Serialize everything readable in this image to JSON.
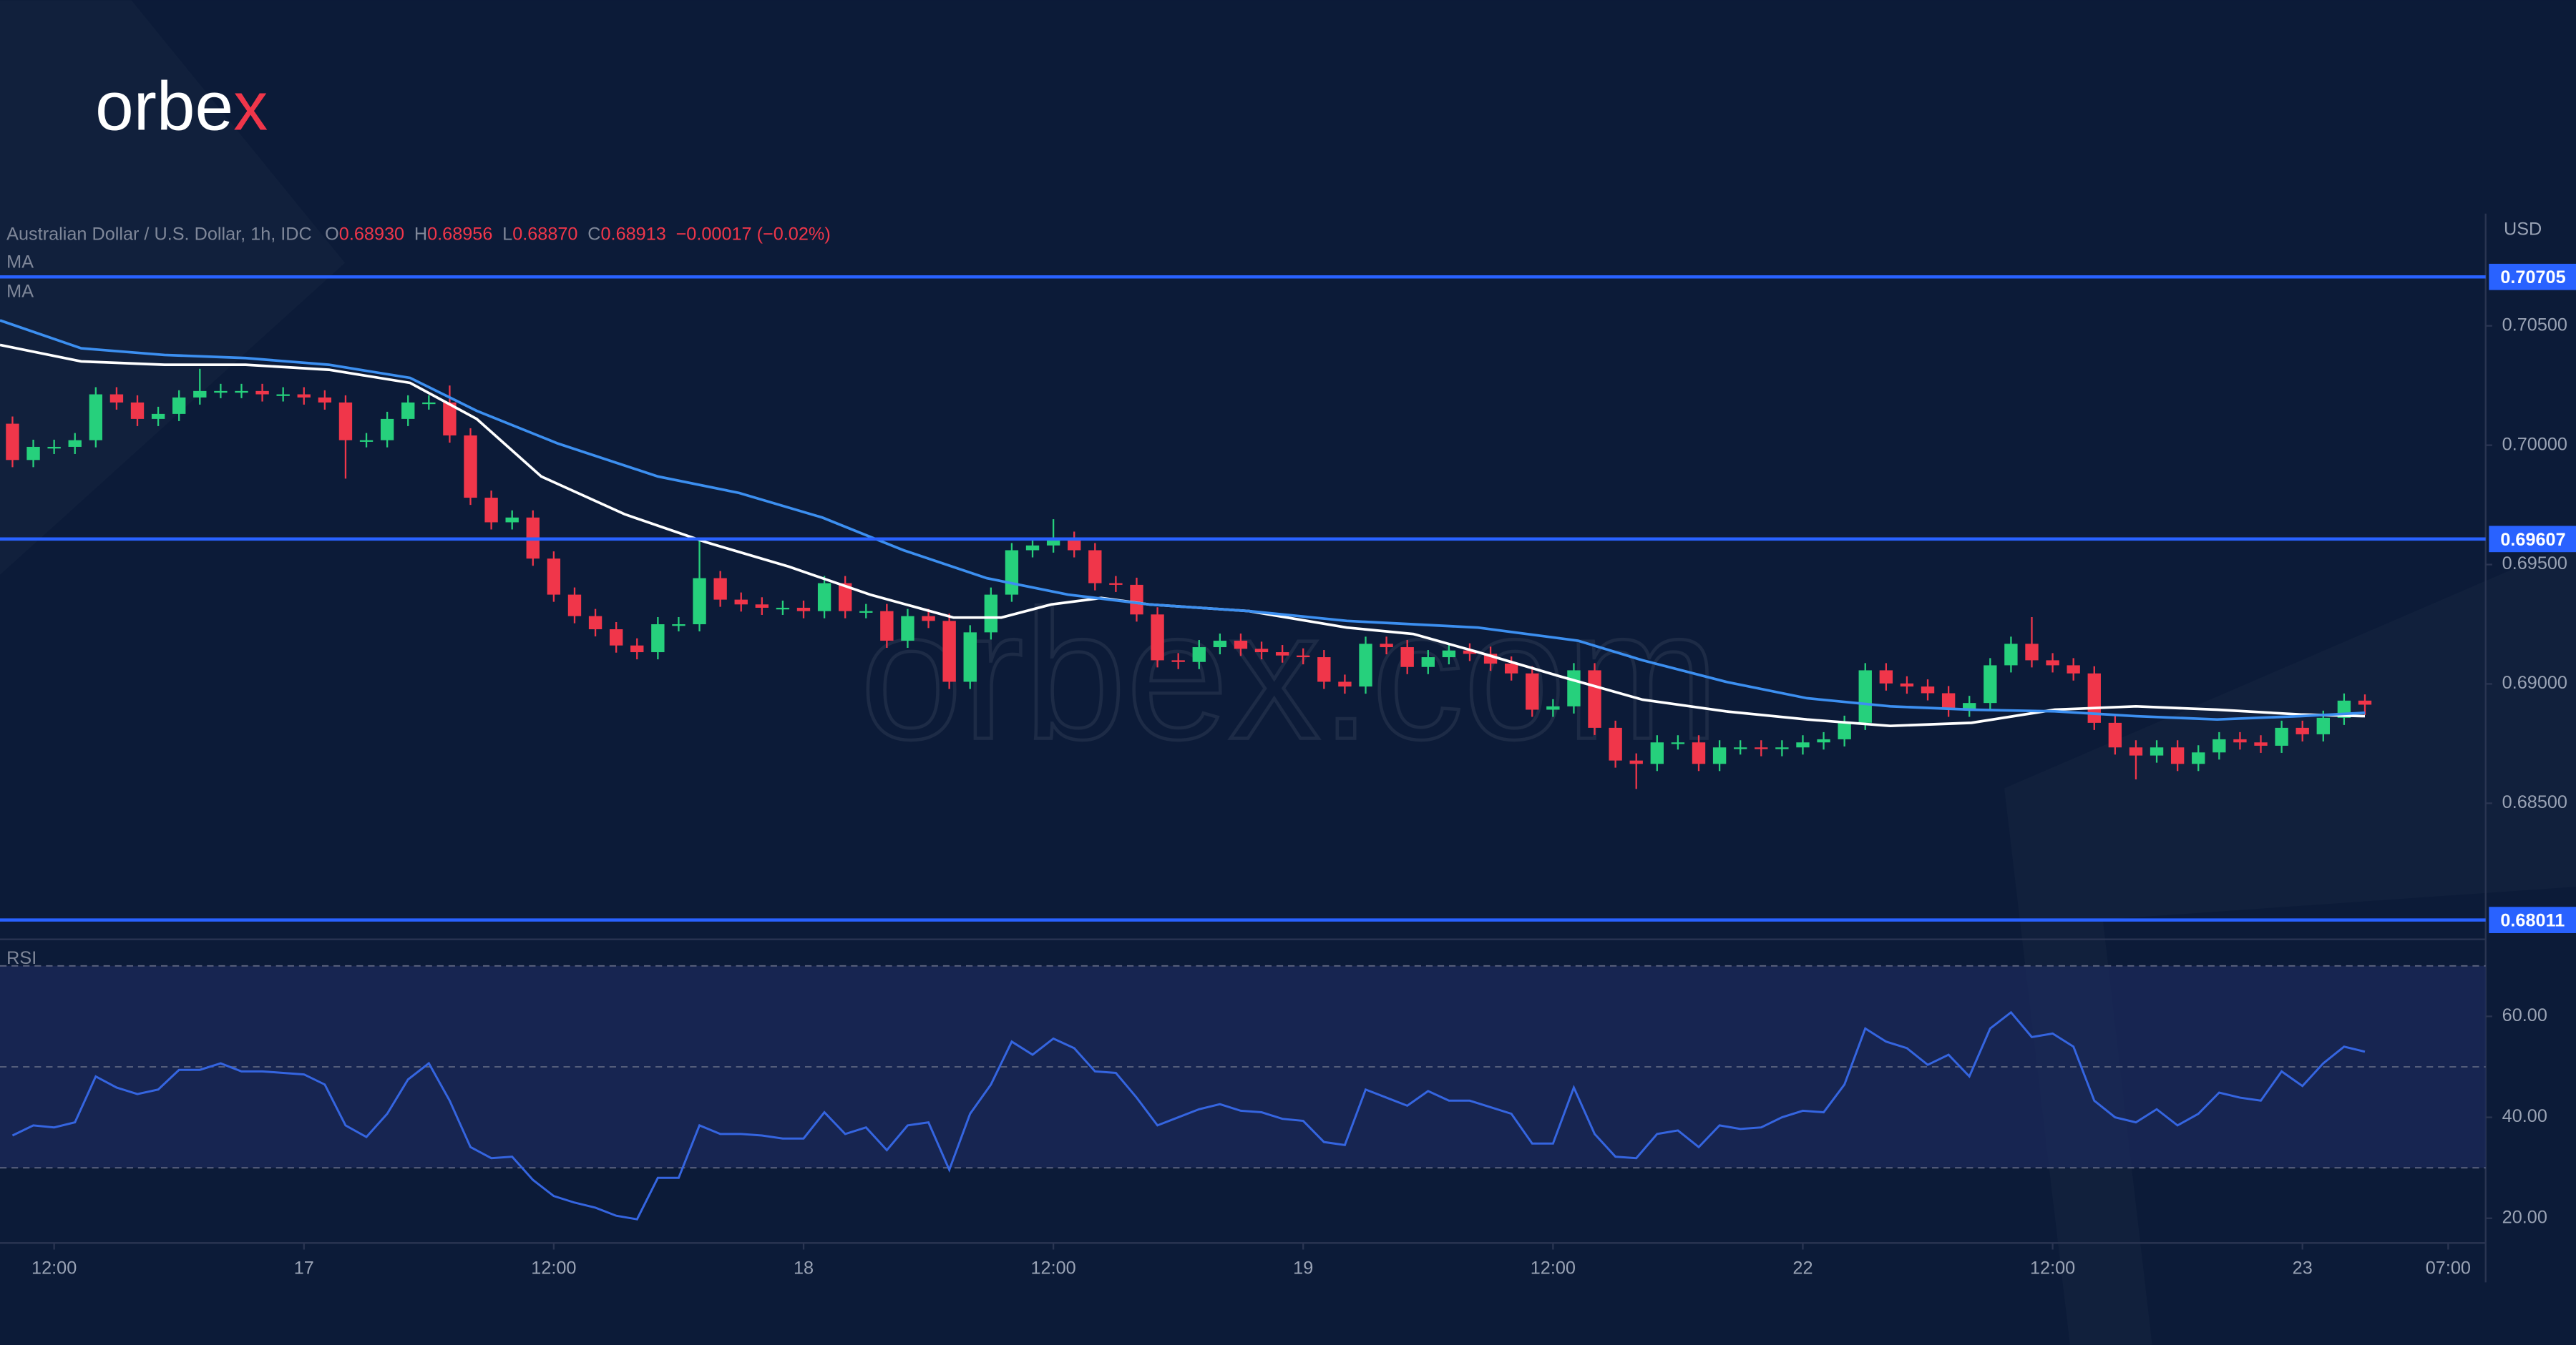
{
  "logo": {
    "text": "orbe",
    "accent": "x"
  },
  "watermark": "orbex.com",
  "chart_data": [
    {
      "type": "candlestick",
      "title": "Australian Dollar / U.S. Dollar, 1h, IDC",
      "ohlc": [
        {
          "label": "O",
          "value": "0.68930"
        },
        {
          "label": "H",
          "value": "0.68956"
        },
        {
          "label": "L",
          "value": "0.68870"
        },
        {
          "label": "C",
          "value": "0.68913"
        }
      ],
      "change": "−0.00017 (−0.02%)",
      "currency": "USD",
      "up_color": "#26d07c",
      "down_color": "#f0364a",
      "ylim": [
        0.67944,
        0.7097
      ],
      "yticks": [
        {
          "value": 0.705,
          "label": "0.70500"
        },
        {
          "value": 0.7,
          "label": "0.70000"
        },
        {
          "value": 0.695,
          "label": "0.69500"
        },
        {
          "value": 0.69,
          "label": "0.69000"
        },
        {
          "value": 0.685,
          "label": "0.68500"
        }
      ],
      "levels": [
        0.70705,
        0.69607,
        0.68011
      ],
      "level_color": "#2962ff",
      "x": [
        -2,
        -1,
        0,
        1,
        2,
        3,
        4,
        5,
        6,
        7,
        8,
        9,
        10,
        11,
        12,
        13,
        14,
        15,
        16,
        17,
        18,
        19,
        20,
        21,
        22,
        23,
        24,
        25,
        26,
        27,
        28,
        29,
        30,
        31,
        32,
        33,
        34,
        35,
        36,
        37,
        38,
        39,
        40,
        41,
        42,
        43,
        44,
        45,
        46,
        47,
        48,
        49,
        50,
        51,
        52,
        53,
        54,
        55,
        56,
        57,
        58,
        59,
        60,
        61,
        62,
        63,
        64,
        65,
        66,
        67,
        68,
        69,
        70,
        71,
        72,
        73,
        74,
        75,
        76,
        77,
        78,
        79,
        80,
        81,
        82,
        83,
        84,
        85,
        86,
        87,
        88,
        89,
        90,
        91,
        92,
        93,
        94,
        95,
        96,
        97,
        98,
        99,
        100,
        101,
        102,
        103,
        104,
        105,
        106,
        107,
        108,
        109,
        110,
        111
      ],
      "open": [
        0.7009,
        0.69938,
        0.69993,
        0.69993,
        0.70021,
        0.70213,
        0.70179,
        0.7011,
        0.70131,
        0.702,
        0.70227,
        0.70227,
        0.70227,
        0.70213,
        0.70213,
        0.702,
        0.70179,
        0.70021,
        0.70021,
        0.7011,
        0.70179,
        0.70179,
        0.70041,
        0.6978,
        0.69677,
        0.69697,
        0.69525,
        0.69374,
        0.69284,
        0.69229,
        0.69161,
        0.69133,
        0.6925,
        0.6925,
        0.69443,
        0.69353,
        0.69333,
        0.69319,
        0.69319,
        0.69305,
        0.69422,
        0.69305,
        0.69305,
        0.69181,
        0.69284,
        0.69264,
        0.69009,
        0.69216,
        0.69374,
        0.6956,
        0.6958,
        0.69608,
        0.6956,
        0.69422,
        0.69415,
        0.69291,
        0.69099,
        0.69092,
        0.69154,
        0.69181,
        0.69147,
        0.69133,
        0.69119,
        0.69112,
        0.69009,
        0.68989,
        0.69168,
        0.69154,
        0.69071,
        0.69112,
        0.6914,
        0.69126,
        0.69085,
        0.69044,
        0.68892,
        0.68906,
        0.69057,
        0.68816,
        0.68679,
        0.68665,
        0.68755,
        0.68755,
        0.68665,
        0.68734,
        0.68734,
        0.68727,
        0.68734,
        0.68755,
        0.68768,
        0.68837,
        0.69057,
        0.69002,
        0.68989,
        0.68961,
        0.68892,
        0.6892,
        0.69078,
        0.69168,
        0.69099,
        0.69078,
        0.69044,
        0.68837,
        0.68734,
        0.687,
        0.68734,
        0.68665,
        0.68713,
        0.68768,
        0.68755,
        0.68741,
        0.68816,
        0.68789,
        0.68858,
        0.6893
      ],
      "high": [
        0.7012,
        0.70023,
        0.70023,
        0.70051,
        0.70243,
        0.70243,
        0.70209,
        0.70161,
        0.7023,
        0.7032,
        0.70257,
        0.70257,
        0.70257,
        0.70243,
        0.70243,
        0.7023,
        0.70209,
        0.70051,
        0.7014,
        0.70209,
        0.70209,
        0.7025,
        0.70071,
        0.6981,
        0.69727,
        0.69727,
        0.69555,
        0.69404,
        0.69314,
        0.69259,
        0.69191,
        0.6928,
        0.6928,
        0.696,
        0.69473,
        0.69383,
        0.69363,
        0.69349,
        0.69349,
        0.69452,
        0.69452,
        0.69335,
        0.69335,
        0.69314,
        0.69314,
        0.69294,
        0.69246,
        0.69404,
        0.6959,
        0.6961,
        0.6969,
        0.69638,
        0.6959,
        0.69452,
        0.69445,
        0.69321,
        0.69129,
        0.69184,
        0.69211,
        0.69211,
        0.69177,
        0.69163,
        0.69149,
        0.69142,
        0.69039,
        0.69198,
        0.69198,
        0.69184,
        0.69142,
        0.6917,
        0.6917,
        0.69156,
        0.69115,
        0.69074,
        0.68936,
        0.69087,
        0.69087,
        0.68846,
        0.68709,
        0.68785,
        0.68785,
        0.68785,
        0.68764,
        0.68764,
        0.68764,
        0.68764,
        0.68785,
        0.68798,
        0.68867,
        0.69087,
        0.69087,
        0.69032,
        0.69019,
        0.68991,
        0.6895,
        0.69108,
        0.69198,
        0.6928,
        0.69129,
        0.69108,
        0.69074,
        0.68867,
        0.68764,
        0.68764,
        0.68764,
        0.68743,
        0.68798,
        0.68798,
        0.68785,
        0.68846,
        0.68846,
        0.68888,
        0.6896,
        0.68956
      ],
      "low": [
        0.69908,
        0.69908,
        0.69963,
        0.69963,
        0.69991,
        0.70149,
        0.7008,
        0.7008,
        0.70101,
        0.7017,
        0.70197,
        0.70197,
        0.70183,
        0.70183,
        0.7017,
        0.70149,
        0.6986,
        0.69991,
        0.69991,
        0.7008,
        0.70149,
        0.70011,
        0.6975,
        0.69647,
        0.69647,
        0.69495,
        0.69344,
        0.69254,
        0.69199,
        0.69131,
        0.69103,
        0.69103,
        0.6922,
        0.6922,
        0.69323,
        0.69303,
        0.69289,
        0.69289,
        0.69275,
        0.69275,
        0.69275,
        0.69275,
        0.69151,
        0.69151,
        0.69234,
        0.68979,
        0.68979,
        0.69186,
        0.69344,
        0.6953,
        0.6955,
        0.6953,
        0.69392,
        0.69385,
        0.69261,
        0.69069,
        0.69062,
        0.69062,
        0.69124,
        0.69117,
        0.69103,
        0.69089,
        0.69082,
        0.68979,
        0.68959,
        0.68959,
        0.69124,
        0.69041,
        0.69041,
        0.69082,
        0.69096,
        0.69055,
        0.69014,
        0.68862,
        0.68862,
        0.68876,
        0.68786,
        0.68649,
        0.6856,
        0.68635,
        0.68725,
        0.68635,
        0.68635,
        0.68704,
        0.68697,
        0.68697,
        0.68704,
        0.68725,
        0.68738,
        0.68807,
        0.68972,
        0.68959,
        0.68931,
        0.68862,
        0.68862,
        0.6889,
        0.69048,
        0.69069,
        0.69048,
        0.69014,
        0.68807,
        0.68704,
        0.686,
        0.6867,
        0.68635,
        0.68635,
        0.68683,
        0.68725,
        0.68711,
        0.68711,
        0.68759,
        0.68759,
        0.68828,
        0.6887
      ],
      "close": [
        0.69938,
        0.69993,
        0.69993,
        0.70021,
        0.70213,
        0.70179,
        0.7011,
        0.70131,
        0.702,
        0.70227,
        0.70227,
        0.70227,
        0.70213,
        0.70213,
        0.702,
        0.70179,
        0.70021,
        0.70021,
        0.7011,
        0.70179,
        0.70179,
        0.70041,
        0.6978,
        0.69677,
        0.69697,
        0.69525,
        0.69374,
        0.69284,
        0.69229,
        0.69161,
        0.69133,
        0.6925,
        0.6925,
        0.69443,
        0.69353,
        0.69333,
        0.69319,
        0.69319,
        0.69305,
        0.69422,
        0.69305,
        0.69305,
        0.69181,
        0.69284,
        0.69264,
        0.69009,
        0.69216,
        0.69374,
        0.6956,
        0.6958,
        0.69608,
        0.6956,
        0.69422,
        0.69415,
        0.69291,
        0.69099,
        0.69092,
        0.69154,
        0.69181,
        0.69147,
        0.69133,
        0.69119,
        0.69112,
        0.69009,
        0.68989,
        0.69168,
        0.69154,
        0.69071,
        0.69112,
        0.6914,
        0.69126,
        0.69085,
        0.69044,
        0.68892,
        0.68906,
        0.69057,
        0.68816,
        0.68679,
        0.68665,
        0.68755,
        0.68755,
        0.68665,
        0.68734,
        0.68734,
        0.68727,
        0.68734,
        0.68755,
        0.68768,
        0.68837,
        0.69057,
        0.69002,
        0.68989,
        0.68961,
        0.68892,
        0.6892,
        0.69078,
        0.69168,
        0.69099,
        0.69078,
        0.69044,
        0.68837,
        0.68734,
        0.687,
        0.68734,
        0.68665,
        0.68713,
        0.68768,
        0.68755,
        0.68741,
        0.68816,
        0.68789,
        0.68858,
        0.6893,
        0.68913
      ],
      "series": [
        {
          "name": "MA",
          "color": "#ffffff",
          "x": [
            -2.6,
            1.3,
            5.3,
            9.2,
            13.2,
            17.1,
            20.3,
            23.4,
            27.4,
            31.3,
            35.3,
            39.2,
            43.2,
            45.5,
            47.9,
            50.3,
            52.6,
            57.4,
            62.1,
            65.3,
            68.4,
            72.4,
            76.3,
            80.3,
            84.2,
            88.2,
            92.1,
            96.1,
            100.0,
            103.9,
            107.9,
            111.0
          ],
          "values": [
            0.7042,
            0.70351,
            0.70337,
            0.70337,
            0.70316,
            0.70261,
            0.7011,
            0.69869,
            0.69711,
            0.69594,
            0.69491,
            0.69374,
            0.69278,
            0.69278,
            0.69333,
            0.6936,
            0.69333,
            0.69305,
            0.69236,
            0.69209,
            0.69133,
            0.6903,
            0.68934,
            0.68885,
            0.68851,
            0.68824,
            0.68837,
            0.68892,
            0.68906,
            0.68892,
            0.68872,
            0.68865
          ]
        },
        {
          "name": "MA",
          "color": "#3c8ff0",
          "x": [
            -2.6,
            1.3,
            5.3,
            9.2,
            13.2,
            17.1,
            20.3,
            24.2,
            29.0,
            32.9,
            36.9,
            40.8,
            44.8,
            48.7,
            52.6,
            57.4,
            62.1,
            68.4,
            73.2,
            76.3,
            80.3,
            84.2,
            88.2,
            92.1,
            96.1,
            100.0,
            103.9,
            107.9,
            111.0
          ],
          "values": [
            0.70523,
            0.70406,
            0.70378,
            0.70365,
            0.70337,
            0.70282,
            0.70144,
            0.70007,
            0.69869,
            0.698,
            0.69697,
            0.6956,
            0.69443,
            0.69374,
            0.69333,
            0.69305,
            0.69264,
            0.69236,
            0.69181,
            0.69099,
            0.69009,
            0.6894,
            0.68906,
            0.68892,
            0.68885,
            0.68865,
            0.68851,
            0.68865,
            0.68879
          ]
        }
      ]
    },
    {
      "type": "line",
      "title": "RSI",
      "xlim": [
        -2.6,
        116.8
      ],
      "xticks": [
        {
          "value": 0,
          "label": "12:00"
        },
        {
          "value": 12,
          "label": "17"
        },
        {
          "value": 24,
          "label": "12:00"
        },
        {
          "value": 36,
          "label": "18"
        },
        {
          "value": 48,
          "label": "12:00"
        },
        {
          "value": 60,
          "label": "19"
        },
        {
          "value": 72,
          "label": "12:00"
        },
        {
          "value": 84,
          "label": "22"
        },
        {
          "value": 96,
          "label": "12:00"
        },
        {
          "value": 108,
          "label": "23"
        },
        {
          "value": 115,
          "label": "07:00"
        }
      ],
      "ylim": [
        15.1,
        74.3
      ],
      "yticks": [
        {
          "value": 20,
          "label": "20.00"
        },
        {
          "value": 40,
          "label": "40.00"
        },
        {
          "value": 60,
          "label": "60.00"
        }
      ],
      "levels": [
        30,
        50,
        70
      ],
      "band_color": "#1b2a5a",
      "series": [
        {
          "color": "#3565e0",
          "x": [
            -2,
            -1,
            0,
            1,
            2,
            3,
            4,
            5,
            6,
            7,
            8,
            9,
            10,
            11,
            12,
            13,
            14,
            15,
            16,
            17,
            18,
            19,
            20,
            21,
            22,
            23,
            24,
            25,
            26,
            27,
            28,
            29,
            30,
            31,
            32,
            33,
            34,
            35,
            36,
            37,
            38,
            39,
            40,
            41,
            42,
            43,
            44,
            45,
            46,
            47,
            48,
            49,
            50,
            51,
            52,
            53,
            54,
            55,
            56,
            57,
            58,
            59,
            60,
            61,
            62,
            63,
            64,
            65,
            66,
            67,
            68,
            69,
            70,
            71,
            72,
            73,
            74,
            75,
            76,
            77,
            78,
            79,
            80,
            81,
            82,
            83,
            84,
            85,
            86,
            87,
            88,
            89,
            90,
            91,
            92,
            93,
            94,
            95,
            96,
            97,
            98,
            99,
            100,
            101,
            102,
            103,
            104,
            105,
            106,
            107,
            108,
            109,
            110,
            111
          ],
          "values": [
            36.4,
            38.4,
            38.0,
            39.0,
            48.1,
            45.9,
            44.6,
            45.5,
            49.4,
            49.4,
            50.7,
            49.1,
            49.1,
            48.8,
            48.5,
            46.5,
            38.4,
            36.1,
            40.7,
            47.5,
            50.7,
            43.3,
            34.1,
            31.9,
            32.2,
            27.6,
            24.4,
            23.1,
            22.1,
            20.5,
            19.8,
            28.0,
            28.0,
            38.4,
            36.7,
            36.7,
            36.4,
            35.8,
            35.8,
            41.0,
            36.7,
            38.0,
            33.5,
            38.4,
            39.0,
            29.6,
            40.7,
            46.5,
            55.0,
            52.4,
            55.6,
            53.7,
            49.1,
            48.8,
            43.9,
            38.4,
            40.0,
            41.6,
            42.6,
            41.3,
            41.0,
            39.7,
            39.3,
            35.1,
            34.5,
            45.5,
            43.9,
            42.3,
            45.2,
            43.3,
            43.3,
            42.0,
            40.7,
            34.8,
            34.8,
            45.9,
            36.7,
            32.2,
            31.9,
            36.7,
            37.4,
            34.1,
            38.4,
            37.7,
            38.0,
            40.0,
            41.3,
            41.0,
            46.5,
            57.6,
            55.0,
            53.7,
            50.4,
            52.4,
            48.1,
            57.6,
            60.8,
            55.9,
            56.6,
            54.0,
            43.3,
            40.0,
            39.0,
            41.6,
            38.4,
            40.7,
            44.9,
            43.9,
            43.3,
            49.1,
            46.2,
            50.7,
            54.0,
            53.0
          ]
        }
      ]
    }
  ]
}
